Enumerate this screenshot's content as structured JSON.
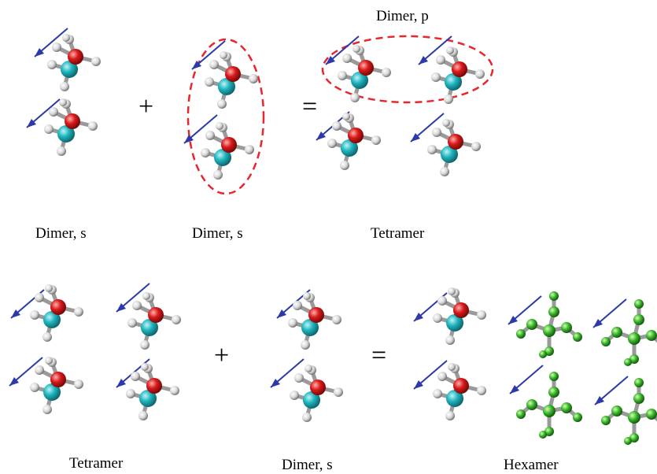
{
  "labels": {
    "dimer_s_1": "Dimer, s",
    "dimer_s_2": "Dimer, s",
    "dimer_p": "Dimer, p",
    "tetramer_top": "Tetramer",
    "tetramer_bottom": "Tetramer",
    "dimer_s_3": "Dimer, s",
    "hexamer": "Hexamer"
  },
  "operators": {
    "plus_1": "+",
    "equals_1": "=",
    "plus_2": "+",
    "equals_2": "="
  },
  "colors": {
    "arrow": "#2b3aa8",
    "dashed_ellipse": "#e8262b",
    "carbon_atom": "#1fb5bf",
    "oxygen_atom": "#d91a1a",
    "hydrogen_atom": "#e8e8e8",
    "green_molecule": "#39b52a"
  },
  "icons": {
    "molecule": "methanol-molecule-icon",
    "green_molecule": "green-molecule-icon",
    "arrow": "dipole-arrow-icon"
  }
}
